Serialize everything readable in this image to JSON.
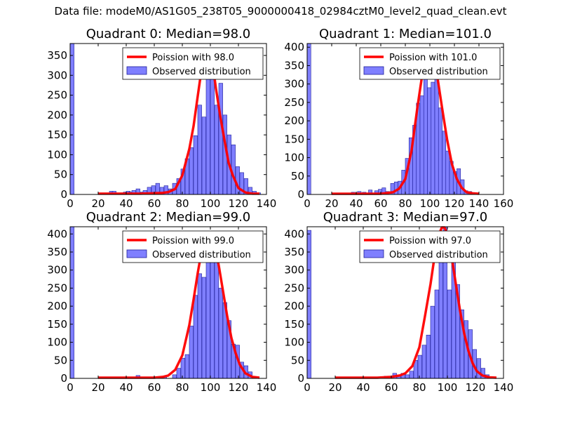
{
  "figure": {
    "suptitle": "Data file: modeM0/AS1G05_238T05_9000000418_02984cztM0_level2_quad_clean.evt"
  },
  "colors": {
    "bars": "#7f7fff",
    "bar_edge": "#1f1f99",
    "poisson": "#ff0000"
  },
  "chart_data": [
    {
      "type": "bar",
      "title": "Quadrant 0: Median=98.0",
      "median": 98.0,
      "xlim": [
        0,
        140
      ],
      "ylim": [
        0,
        380
      ],
      "xticks": [
        0,
        20,
        40,
        60,
        80,
        100,
        120,
        140
      ],
      "yticks": [
        0,
        50,
        100,
        150,
        200,
        250,
        300,
        350
      ],
      "bin_width": 2.8,
      "bins": [
        [
          0,
          380
        ],
        [
          28,
          8
        ],
        [
          30,
          8
        ],
        [
          36,
          4
        ],
        [
          38,
          6
        ],
        [
          40,
          8
        ],
        [
          42,
          6
        ],
        [
          44,
          10
        ],
        [
          47,
          14
        ],
        [
          50,
          6
        ],
        [
          52,
          10
        ],
        [
          55,
          18
        ],
        [
          58,
          22
        ],
        [
          61,
          28
        ],
        [
          64,
          18
        ],
        [
          67,
          22
        ],
        [
          70,
          14
        ],
        [
          73,
          28
        ],
        [
          76,
          40
        ],
        [
          79,
          64
        ],
        [
          82,
          90
        ],
        [
          85,
          118
        ],
        [
          88,
          148
        ],
        [
          91,
          225
        ],
        [
          94,
          195
        ],
        [
          97,
          355
        ],
        [
          100,
          320
        ],
        [
          103,
          225
        ],
        [
          106,
          280
        ],
        [
          109,
          200
        ],
        [
          112,
          150
        ],
        [
          115,
          125
        ],
        [
          118,
          70
        ],
        [
          121,
          55
        ],
        [
          124,
          40
        ],
        [
          127,
          18
        ],
        [
          130,
          8
        ],
        [
          133,
          4
        ]
      ],
      "poisson_x": [
        20,
        50,
        60,
        66,
        70,
        75,
        80,
        85,
        88,
        91,
        94,
        96,
        98,
        100,
        102,
        104,
        107,
        110,
        113,
        116,
        120,
        125,
        130,
        135
      ],
      "poisson_y": [
        2,
        2,
        3,
        4,
        6,
        14,
        48,
        115,
        172,
        248,
        322,
        358,
        364,
        354,
        318,
        266,
        198,
        138,
        80,
        48,
        16,
        5,
        2,
        2
      ],
      "legend": [
        "Poission with 98.0",
        "Observed distribution"
      ]
    },
    {
      "type": "bar",
      "title": "Quadrant 1: Median=101.0",
      "median": 101.0,
      "xlim": [
        0,
        160
      ],
      "ylim": [
        0,
        410
      ],
      "xticks": [
        0,
        20,
        40,
        60,
        80,
        100,
        120,
        140,
        160
      ],
      "yticks": [
        0,
        50,
        100,
        150,
        200,
        250,
        300,
        350,
        400
      ],
      "bin_width": 3.0,
      "bins": [
        [
          0,
          410
        ],
        [
          36,
          6
        ],
        [
          41,
          8
        ],
        [
          45,
          6
        ],
        [
          50,
          12
        ],
        [
          55,
          10
        ],
        [
          58,
          14
        ],
        [
          61,
          18
        ],
        [
          64,
          8
        ],
        [
          68,
          30
        ],
        [
          71,
          34
        ],
        [
          74,
          36
        ],
        [
          77,
          66
        ],
        [
          80,
          98
        ],
        [
          83,
          154
        ],
        [
          86,
          188
        ],
        [
          89,
          248
        ],
        [
          92,
          268
        ],
        [
          95,
          335
        ],
        [
          98,
          290
        ],
        [
          101,
          305
        ],
        [
          104,
          395
        ],
        [
          107,
          235
        ],
        [
          110,
          172
        ],
        [
          113,
          118
        ],
        [
          116,
          90
        ],
        [
          119,
          62
        ],
        [
          122,
          70
        ],
        [
          125,
          40
        ],
        [
          128,
          10
        ],
        [
          131,
          8
        ],
        [
          134,
          5
        ]
      ],
      "poisson_x": [
        20,
        60,
        70,
        75,
        80,
        85,
        90,
        94,
        97,
        100,
        103,
        106,
        110,
        114,
        118,
        122,
        126,
        130,
        135,
        140
      ],
      "poisson_y": [
        2,
        2,
        6,
        16,
        42,
        118,
        240,
        330,
        375,
        392,
        372,
        322,
        234,
        150,
        82,
        42,
        18,
        6,
        3,
        2
      ],
      "legend": [
        "Poission with 101.0",
        "Observed distribution"
      ]
    },
    {
      "type": "bar",
      "title": "Quadrant 2: Median=99.0",
      "median": 99.0,
      "xlim": [
        0,
        140
      ],
      "ylim": [
        0,
        420
      ],
      "xticks": [
        0,
        20,
        40,
        60,
        80,
        100,
        120,
        140
      ],
      "yticks": [
        0,
        50,
        100,
        150,
        200,
        250,
        300,
        350,
        400
      ],
      "bin_width": 2.8,
      "bins": [
        [
          0,
          420
        ],
        [
          47,
          8
        ],
        [
          63,
          3
        ],
        [
          66,
          4
        ],
        [
          73,
          10
        ],
        [
          76,
          28
        ],
        [
          79,
          56
        ],
        [
          82,
          66
        ],
        [
          85,
          145
        ],
        [
          88,
          230
        ],
        [
          91,
          290
        ],
        [
          94,
          280
        ],
        [
          97,
          330
        ],
        [
          100,
          395
        ],
        [
          103,
          375
        ],
        [
          106,
          250
        ],
        [
          109,
          210
        ],
        [
          112,
          160
        ],
        [
          115,
          95
        ],
        [
          118,
          92
        ],
        [
          121,
          45
        ],
        [
          124,
          35
        ],
        [
          127,
          18
        ],
        [
          130,
          5
        ]
      ],
      "poisson_x": [
        20,
        60,
        66,
        70,
        75,
        80,
        85,
        88,
        91,
        94,
        97,
        99,
        101,
        103,
        106,
        109,
        112,
        115,
        118,
        121,
        125,
        130,
        135
      ],
      "poisson_y": [
        2,
        2,
        4,
        8,
        24,
        64,
        148,
        218,
        292,
        358,
        398,
        404,
        398,
        368,
        312,
        242,
        172,
        112,
        70,
        38,
        14,
        4,
        2
      ],
      "legend": [
        "Poission with 99.0",
        "Observed distribution"
      ]
    },
    {
      "type": "bar",
      "title": "Quadrant 3: Median=97.0",
      "median": 97.0,
      "xlim": [
        0,
        140
      ],
      "ylim": [
        0,
        420
      ],
      "xticks": [
        0,
        20,
        40,
        60,
        80,
        100,
        120,
        140
      ],
      "yticks": [
        0,
        50,
        100,
        150,
        200,
        250,
        300,
        350,
        400
      ],
      "bin_width": 2.8,
      "bins": [
        [
          0,
          410
        ],
        [
          55,
          6
        ],
        [
          61,
          14
        ],
        [
          64,
          8
        ],
        [
          67,
          14
        ],
        [
          70,
          10
        ],
        [
          73,
          20
        ],
        [
          76,
          50
        ],
        [
          79,
          64
        ],
        [
          82,
          92
        ],
        [
          85,
          120
        ],
        [
          88,
          200
        ],
        [
          91,
          245
        ],
        [
          94,
          388
        ],
        [
          97,
          420
        ],
        [
          100,
          245
        ],
        [
          103,
          390
        ],
        [
          106,
          260
        ],
        [
          109,
          190
        ],
        [
          112,
          160
        ],
        [
          115,
          135
        ],
        [
          118,
          80
        ],
        [
          121,
          55
        ],
        [
          124,
          28
        ],
        [
          127,
          10
        ]
      ],
      "poisson_x": [
        20,
        50,
        60,
        66,
        70,
        75,
        80,
        84,
        88,
        91,
        94,
        96,
        98,
        100,
        103,
        106,
        109,
        112,
        115,
        118,
        121,
        125,
        130,
        135
      ],
      "poisson_y": [
        2,
        2,
        4,
        8,
        14,
        34,
        86,
        172,
        262,
        342,
        398,
        418,
        418,
        398,
        338,
        262,
        188,
        124,
        76,
        42,
        20,
        8,
        3,
        2
      ],
      "legend": [
        "Poission with 97.0",
        "Observed distribution"
      ]
    }
  ]
}
